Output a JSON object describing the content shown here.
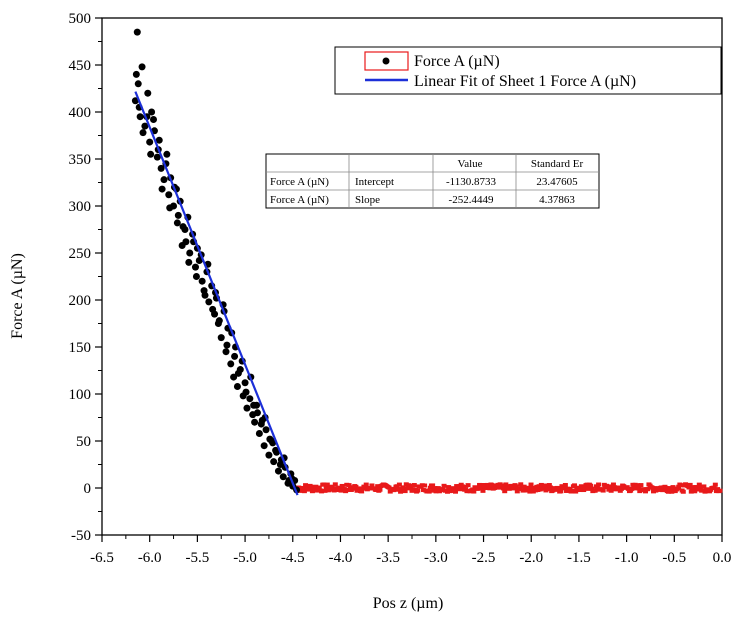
{
  "chart_data": {
    "type": "scatter",
    "xlabel": "Pos z (µm)",
    "ylabel": "Force A (µN)",
    "xlim": [
      -6.5,
      0.0
    ],
    "ylim": [
      -50,
      500
    ],
    "x_ticks": [
      -6.5,
      -6.0,
      -5.5,
      -5.0,
      -4.5,
      -4.0,
      -3.5,
      -3.0,
      -2.5,
      -2.0,
      -1.5,
      -1.0,
      -0.5,
      0.0
    ],
    "x_tick_labels": [
      "-6.5",
      "-6.0",
      "-5.5",
      "-5.0",
      "-4.5",
      "-4.0",
      "-3.5",
      "-3.0",
      "-2.5",
      "-2.0",
      "-1.5",
      "-1.0",
      "-0.5",
      "0.0"
    ],
    "y_ticks": [
      -50,
      0,
      50,
      100,
      150,
      200,
      250,
      300,
      350,
      400,
      450,
      500
    ],
    "y_tick_labels": [
      "-50",
      "0",
      "50",
      "100",
      "150",
      "200",
      "250",
      "300",
      "350",
      "400",
      "450",
      "500"
    ],
    "grid": false,
    "legend_position": "top-right",
    "colors": {
      "contact": "#000000",
      "baseline": "#e8191a",
      "fit": "#1c2fd8"
    },
    "series": [
      {
        "name": "Force A (µN)",
        "kind": "scatter-contact",
        "x": [
          -6.15,
          -6.12,
          -6.1,
          -6.08,
          -6.05,
          -6.02,
          -6.0,
          -5.98,
          -5.95,
          -5.92,
          -5.9,
          -5.88,
          -5.85,
          -5.82,
          -5.8,
          -5.78,
          -5.75,
          -5.72,
          -5.7,
          -5.68,
          -5.65,
          -5.62,
          -5.6,
          -5.58,
          -5.55,
          -5.52,
          -5.5,
          -5.48,
          -5.45,
          -5.42,
          -5.4,
          -5.38,
          -5.35,
          -5.32,
          -5.3,
          -5.28,
          -5.25,
          -5.22,
          -5.2,
          -5.18,
          -5.15,
          -5.12,
          -5.1,
          -5.08,
          -5.05,
          -5.02,
          -5.0,
          -4.98,
          -4.95,
          -4.92,
          -4.9,
          -4.88,
          -4.85,
          -4.82,
          -4.8,
          -4.78,
          -4.75,
          -4.72,
          -4.7,
          -4.68,
          -4.65,
          -4.62,
          -4.6,
          -4.58,
          -4.55,
          -4.52,
          -4.5,
          -4.48,
          -4.46,
          -6.14,
          -6.11,
          -6.07,
          -6.03,
          -5.99,
          -5.96,
          -5.91,
          -5.87,
          -5.83,
          -5.79,
          -5.74,
          -5.71,
          -5.66,
          -5.63,
          -5.59,
          -5.54,
          -5.51,
          -5.46,
          -5.43,
          -5.39,
          -5.34,
          -5.31,
          -5.27,
          -5.23,
          -5.19,
          -5.14,
          -5.11,
          -5.07,
          -5.03,
          -4.99,
          -4.94,
          -4.91,
          -4.87,
          -4.83,
          -4.79,
          -4.74,
          -4.71,
          -4.67,
          -4.63,
          -4.59,
          -4.54,
          -4.51,
          -6.13
        ],
        "y": [
          412,
          430,
          395,
          448,
          385,
          420,
          368,
          400,
          380,
          352,
          370,
          340,
          328,
          355,
          312,
          330,
          300,
          318,
          290,
          305,
          278,
          262,
          288,
          250,
          270,
          235,
          255,
          242,
          220,
          205,
          230,
          198,
          215,
          185,
          202,
          175,
          160,
          188,
          145,
          170,
          132,
          118,
          150,
          108,
          126,
          98,
          112,
          85,
          95,
          78,
          70,
          88,
          58,
          72,
          45,
          62,
          35,
          50,
          28,
          40,
          18,
          30,
          12,
          22,
          5,
          15,
          2,
          8,
          -2,
          440,
          405,
          378,
          395,
          355,
          392,
          360,
          318,
          345,
          298,
          320,
          282,
          258,
          275,
          240,
          262,
          225,
          248,
          210,
          238,
          190,
          208,
          178,
          195,
          152,
          165,
          140,
          122,
          135,
          102,
          118,
          88,
          80,
          68,
          75,
          52,
          48,
          38,
          25,
          32,
          8,
          10,
          485
        ],
        "size": 3.5
      },
      {
        "name": "Force A (µN)",
        "kind": "baseline",
        "x_start": -4.45,
        "x_end": -0.02,
        "y_mean": 0,
        "noise": 4
      },
      {
        "name": "Linear Fit of Sheet 1 Force A (µN)",
        "kind": "line",
        "intercept": -1130.8733,
        "slope": -252.4449,
        "x_range": [
          -6.15,
          -4.45
        ]
      }
    ],
    "legend": [
      {
        "label": "Force A (µN)",
        "marker": "dot-with-red-box"
      },
      {
        "label": "Linear Fit of Sheet 1 Force A (µN)",
        "marker": "blue-line"
      }
    ],
    "fit_table": {
      "headers": [
        "",
        "",
        "Value",
        "Standard Er"
      ],
      "rows": [
        [
          "Force A (µN)",
          "Intercept",
          "-1130.8733",
          "23.47605"
        ],
        [
          "Force A (µN)",
          "Slope",
          "-252.4449",
          "4.37863"
        ]
      ]
    }
  }
}
